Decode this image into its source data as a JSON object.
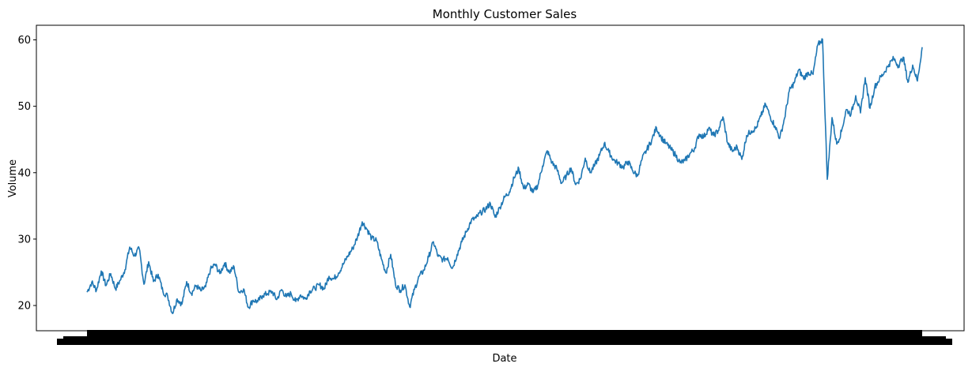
{
  "chart_data": {
    "type": "line",
    "title": "Monthly Customer Sales",
    "xlabel": "Date",
    "ylabel": "Volume",
    "ylim": [
      16.2,
      62.2
    ],
    "yticks": [
      20,
      30,
      40,
      50,
      60
    ],
    "xlim": [
      0,
      1
    ],
    "x_tick_labels_legible": false,
    "grid": false,
    "color": "#1f77b4",
    "series": [
      {
        "values": [
          22.0,
          23.5,
          22.3,
          25.2,
          23.0,
          24.8,
          22.5,
          23.8,
          25.4,
          28.8,
          27.5,
          28.6,
          23.2,
          26.6,
          23.6,
          24.7,
          22.1,
          21.4,
          18.8,
          21.0,
          20.2,
          23.6,
          21.8,
          23.0,
          22.2,
          22.8,
          25.4,
          26.2,
          24.8,
          26.4,
          25.0,
          25.8,
          22.0,
          22.5,
          19.7,
          20.8,
          20.6,
          21.5,
          21.8,
          22.1,
          20.9,
          22.4,
          21.3,
          21.8,
          20.6,
          21.6,
          21.0,
          22.2,
          22.6,
          23.1,
          22.5,
          24.4,
          24.0,
          24.9,
          26.2,
          27.5,
          28.6,
          30.3,
          32.6,
          31.5,
          30.1,
          29.8,
          27.1,
          24.9,
          27.7,
          23.2,
          22.3,
          23.1,
          19.8,
          22.4,
          24.4,
          25.3,
          27.3,
          29.6,
          27.4,
          26.9,
          27.2,
          25.6,
          27.7,
          29.6,
          31.2,
          32.8,
          33.2,
          34.0,
          34.5,
          35.4,
          33.3,
          34.8,
          36.3,
          37.1,
          39.2,
          40.6,
          37.6,
          38.3,
          37.0,
          38.1,
          41.0,
          43.3,
          41.5,
          40.6,
          38.4,
          39.5,
          40.7,
          38.2,
          39.1,
          42.2,
          40.0,
          41.1,
          42.6,
          44.4,
          43.1,
          41.9,
          41.4,
          40.8,
          41.7,
          40.3,
          39.5,
          42.1,
          43.5,
          44.9,
          46.8,
          45.3,
          44.4,
          43.6,
          42.7,
          41.5,
          41.8,
          42.8,
          43.6,
          45.8,
          45.4,
          46.7,
          45.6,
          46.3,
          48.4,
          44.5,
          43.2,
          43.9,
          42.0,
          45.6,
          46.3,
          46.7,
          48.5,
          50.3,
          48.4,
          47.0,
          45.2,
          48.2,
          52.3,
          53.5,
          55.5,
          54.2,
          55.1,
          54.8,
          59.2,
          60.1,
          39.0,
          48.3,
          44.3,
          46.2,
          49.5,
          48.8,
          51.6,
          49.0,
          54.3,
          49.7,
          52.9,
          54.1,
          55.1,
          56.3,
          57.2,
          56.1,
          57.4,
          53.6,
          56.2,
          53.8,
          58.9
        ]
      }
    ]
  }
}
